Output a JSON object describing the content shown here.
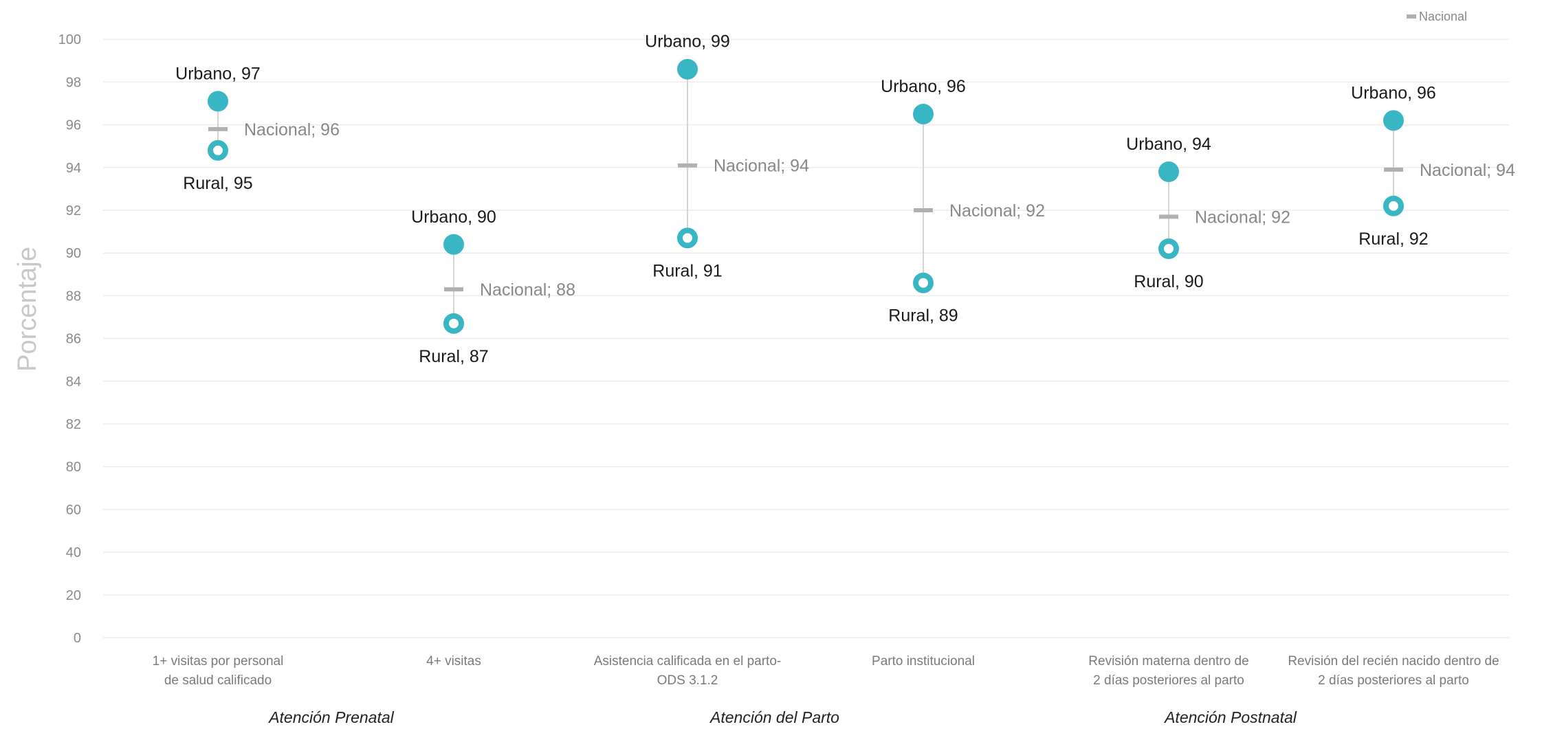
{
  "chart_data": {
    "type": "dot-range",
    "ylabel": "Porcentaje",
    "yticks": [
      0,
      20,
      40,
      60,
      80,
      82,
      84,
      86,
      88,
      90,
      92,
      94,
      96,
      98,
      100
    ],
    "ylim": [
      0,
      100
    ],
    "legend": {
      "label": "Nacional",
      "position": "top-right"
    },
    "categories": [
      {
        "lines": [
          "1+ visitas  por personal",
          "de salud calificado"
        ],
        "urbano": 97.1,
        "rural": 94.8,
        "nacional": 95.8,
        "urbano_label": "Urbano, 97",
        "rural_label": "Rural, 95",
        "nacional_label": "Nacional; 96"
      },
      {
        "lines": [
          "4+ visitas"
        ],
        "urbano": 90.4,
        "rural": 86.7,
        "nacional": 88.3,
        "urbano_label": "Urbano, 90",
        "rural_label": "Rural, 87",
        "nacional_label": "Nacional; 88"
      },
      {
        "lines": [
          "Asistencia calificada en el parto-",
          "ODS 3.1.2"
        ],
        "urbano": 98.6,
        "rural": 90.7,
        "nacional": 94.1,
        "urbano_label": "Urbano, 99",
        "rural_label": "Rural, 91",
        "nacional_label": "Nacional; 94"
      },
      {
        "lines": [
          "Parto institucional"
        ],
        "urbano": 96.5,
        "rural": 88.6,
        "nacional": 92.0,
        "urbano_label": "Urbano, 96",
        "rural_label": "Rural, 89",
        "nacional_label": "Nacional; 92"
      },
      {
        "lines": [
          "Revisión materna dentro de",
          "2 días posteriores al parto"
        ],
        "urbano": 93.8,
        "rural": 90.2,
        "nacional": 91.7,
        "urbano_label": "Urbano, 94",
        "rural_label": "Rural, 90",
        "nacional_label": "Nacional; 92"
      },
      {
        "lines": [
          "Revisión del recién nacido dentro de",
          "2 días posteriores al parto"
        ],
        "urbano": 96.2,
        "rural": 92.2,
        "nacional": 93.9,
        "urbano_label": "Urbano, 96",
        "rural_label": "Rural, 92",
        "nacional_label": "Nacional; 94"
      }
    ],
    "groups": [
      "Atención Prenatal",
      "Atención del Parto",
      "Atención Postnatal"
    ]
  }
}
